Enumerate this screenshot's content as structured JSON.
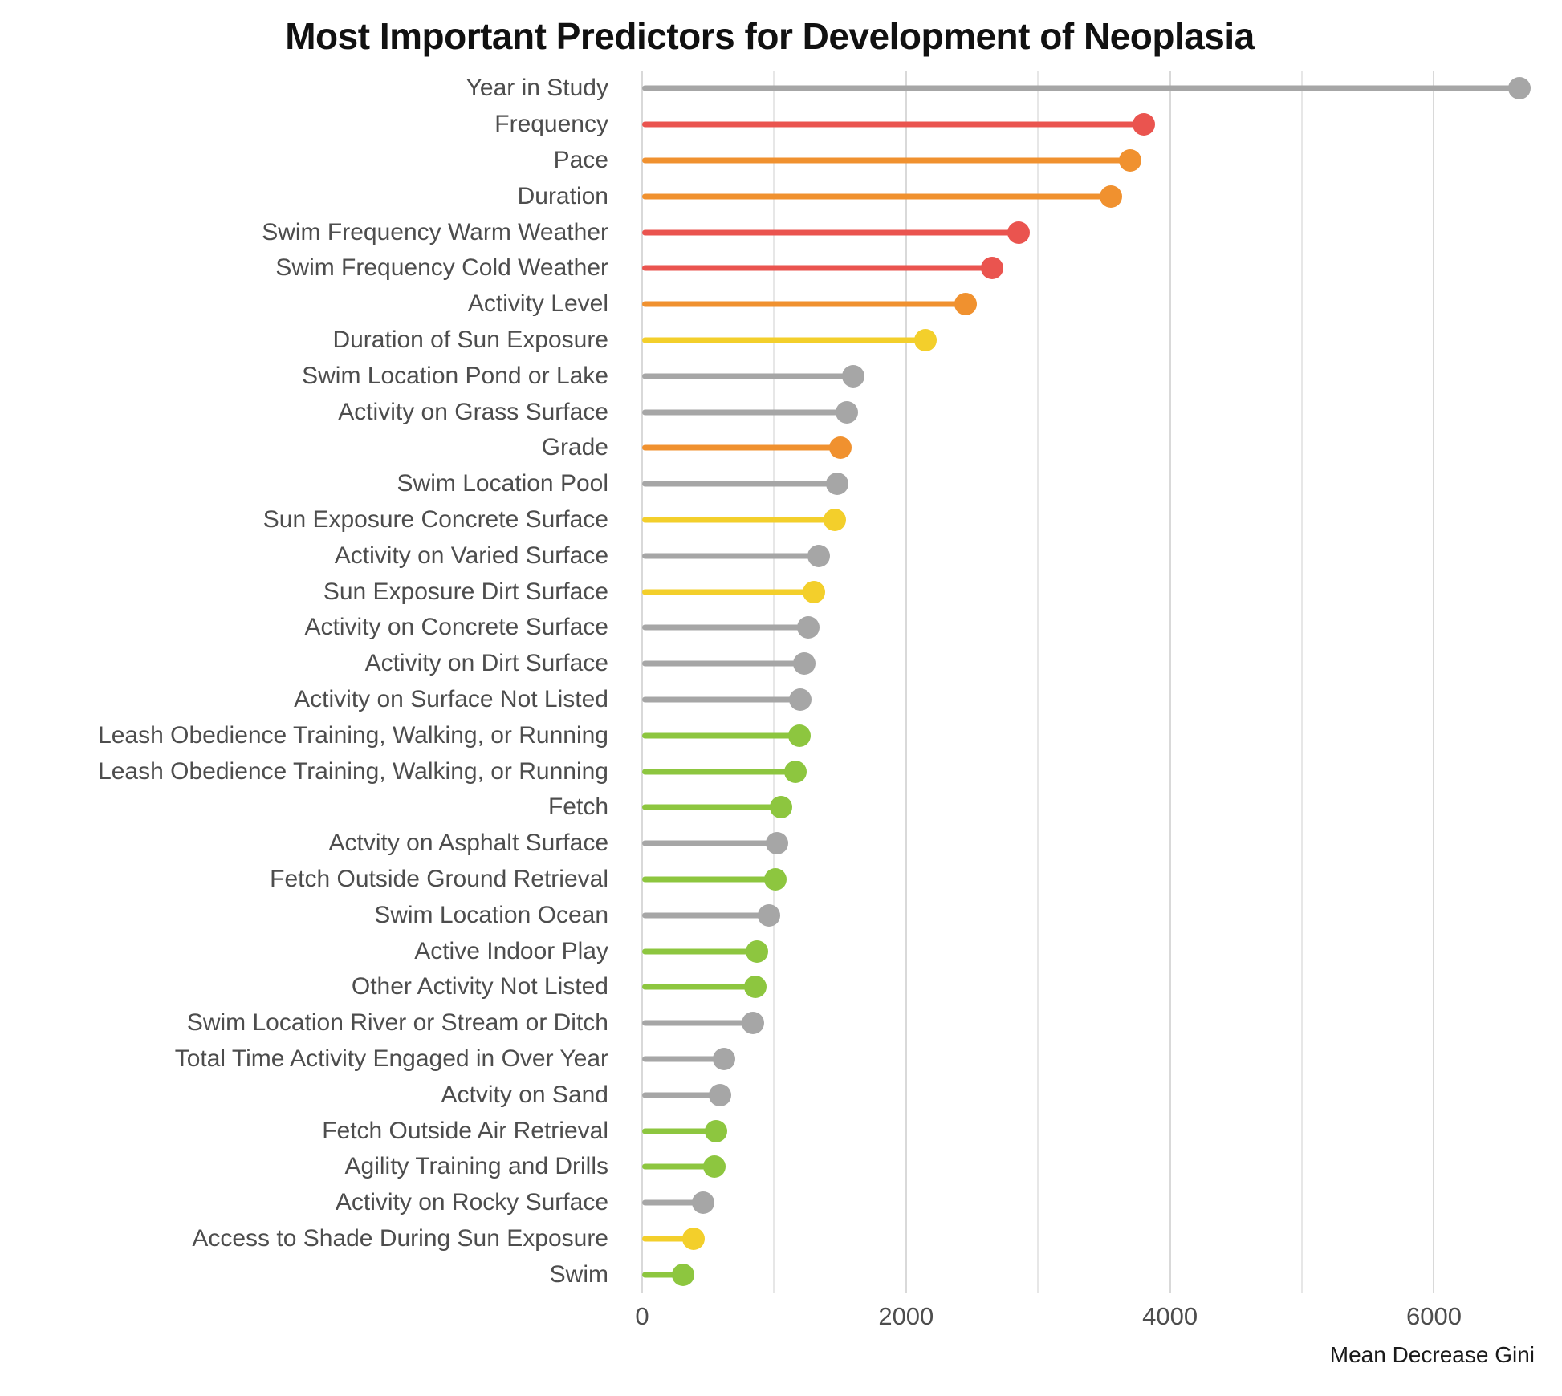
{
  "chart_data": {
    "type": "lollipop",
    "orientation": "horizontal",
    "title": "Most Important Predictors for Development of Neoplasia",
    "xlabel": "Mean Decrease Gini",
    "xlim": [
      0,
      6800
    ],
    "xticks": [
      0,
      2000,
      4000,
      6000
    ],
    "gridlines": [
      {
        "x": 0,
        "minor": false
      },
      {
        "x": 1000,
        "minor": true
      },
      {
        "x": 2000,
        "minor": false
      },
      {
        "x": 3000,
        "minor": true
      },
      {
        "x": 4000,
        "minor": false
      },
      {
        "x": 5000,
        "minor": true
      },
      {
        "x": 6000,
        "minor": false
      }
    ],
    "palette": {
      "gray": "#a6a6a6",
      "red": "#ea544f",
      "orange": "#f0912f",
      "yellow": "#f3cf2b",
      "green": "#8dc63f"
    },
    "items": [
      {
        "label": "Year in Study",
        "value": 6650,
        "color": "gray"
      },
      {
        "label": "Frequency",
        "value": 3800,
        "color": "red"
      },
      {
        "label": "Pace",
        "value": 3700,
        "color": "orange"
      },
      {
        "label": "Duration",
        "value": 3550,
        "color": "orange"
      },
      {
        "label": "Swim Frequency Warm Weather",
        "value": 2850,
        "color": "red"
      },
      {
        "label": "Swim Frequency Cold Weather",
        "value": 2650,
        "color": "red"
      },
      {
        "label": "Activity Level",
        "value": 2450,
        "color": "orange"
      },
      {
        "label": "Duration of Sun Exposure",
        "value": 2150,
        "color": "yellow"
      },
      {
        "label": "Swim Location Pond or Lake",
        "value": 1600,
        "color": "gray"
      },
      {
        "label": "Activity on Grass Surface",
        "value": 1550,
        "color": "gray"
      },
      {
        "label": "Grade",
        "value": 1500,
        "color": "orange"
      },
      {
        "label": "Swim Location Pool",
        "value": 1480,
        "color": "gray"
      },
      {
        "label": "Sun Exposure Concrete Surface",
        "value": 1460,
        "color": "yellow"
      },
      {
        "label": "Activity on Varied Surface",
        "value": 1340,
        "color": "gray"
      },
      {
        "label": "Sun Exposure Dirt Surface",
        "value": 1300,
        "color": "yellow"
      },
      {
        "label": "Activity on Concrete Surface",
        "value": 1260,
        "color": "gray"
      },
      {
        "label": "Activity on Dirt Surface",
        "value": 1230,
        "color": "gray"
      },
      {
        "label": "Activity on Surface Not Listed",
        "value": 1200,
        "color": "gray"
      },
      {
        "label": "Leash Obedience Training, Walking, or Running",
        "value": 1190,
        "color": "green"
      },
      {
        "label": "Leash Obedience Training, Walking, or Running",
        "value": 1160,
        "color": "green"
      },
      {
        "label": "Fetch",
        "value": 1050,
        "color": "green"
      },
      {
        "label": "Actvity on Asphalt Surface",
        "value": 1020,
        "color": "gray"
      },
      {
        "label": "Fetch Outside Ground Retrieval",
        "value": 1010,
        "color": "green"
      },
      {
        "label": "Swim Location Ocean",
        "value": 960,
        "color": "gray"
      },
      {
        "label": "Active Indoor Play",
        "value": 870,
        "color": "green"
      },
      {
        "label": "Other Activity Not Listed",
        "value": 860,
        "color": "green"
      },
      {
        "label": "Swim Location River or Stream or Ditch",
        "value": 840,
        "color": "gray"
      },
      {
        "label": "Total Time Activity Engaged in Over Year",
        "value": 620,
        "color": "gray"
      },
      {
        "label": "Actvity on Sand",
        "value": 590,
        "color": "gray"
      },
      {
        "label": "Fetch Outside Air Retrieval",
        "value": 560,
        "color": "green"
      },
      {
        "label": "Agility Training and Drills",
        "value": 545,
        "color": "green"
      },
      {
        "label": "Activity on Rocky Surface",
        "value": 460,
        "color": "gray"
      },
      {
        "label": "Access to Shade During Sun Exposure",
        "value": 390,
        "color": "yellow"
      },
      {
        "label": "Swim",
        "value": 310,
        "color": "green"
      }
    ]
  }
}
